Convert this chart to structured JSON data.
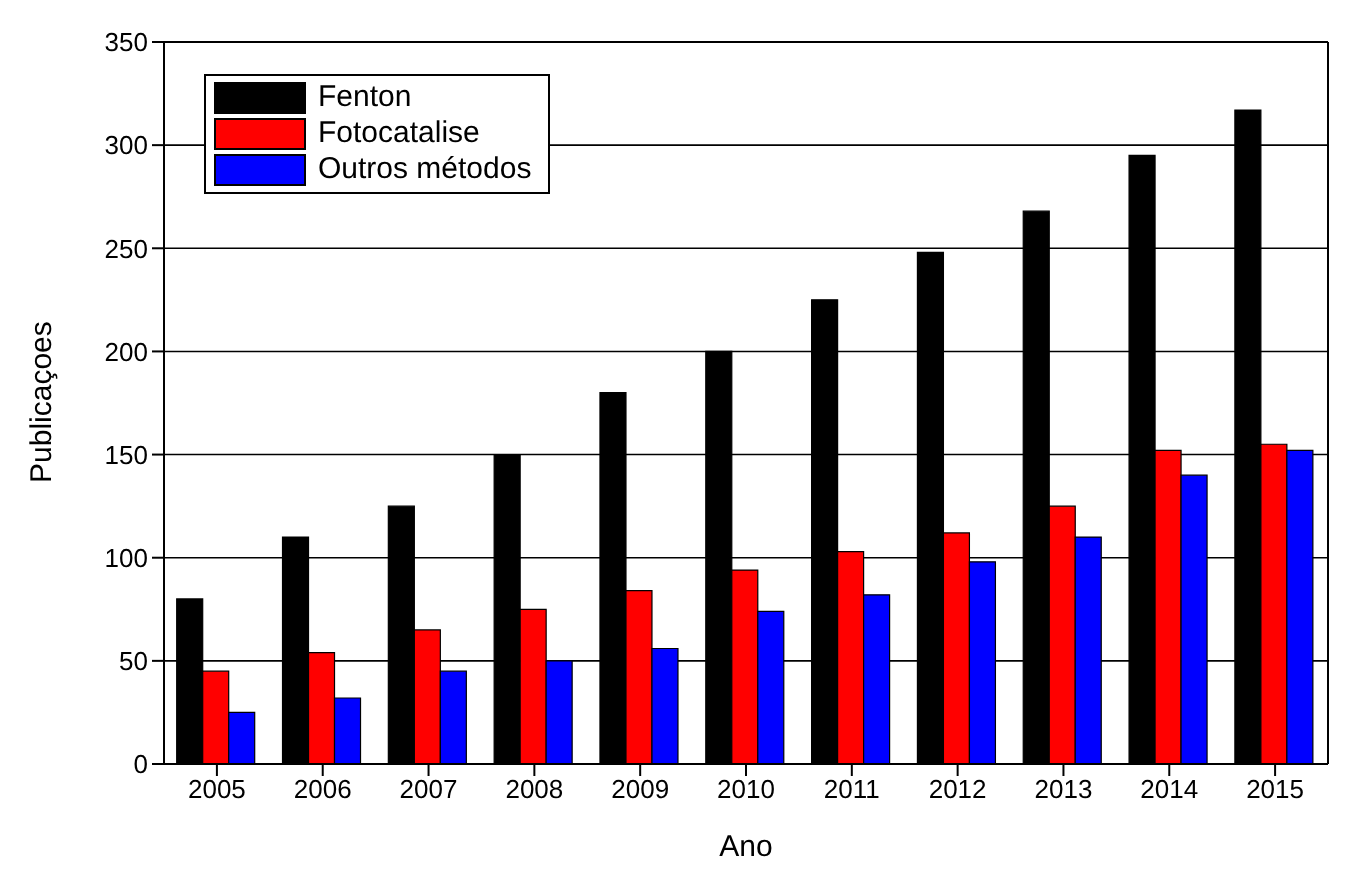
{
  "chart_data": {
    "type": "bar",
    "xlabel": "Ano",
    "ylabel": "Publicaçoes",
    "categories": [
      "2005",
      "2006",
      "2007",
      "2008",
      "2009",
      "2010",
      "2011",
      "2012",
      "2013",
      "2014",
      "2015"
    ],
    "series": [
      {
        "name": "Fenton",
        "color": "#000000",
        "values": [
          80,
          110,
          125,
          150,
          180,
          200,
          225,
          248,
          268,
          295,
          317
        ]
      },
      {
        "name": "Fotocatalise",
        "color": "#ff0000",
        "values": [
          45,
          54,
          65,
          75,
          84,
          94,
          103,
          112,
          125,
          152,
          155
        ]
      },
      {
        "name": "Outros métodos",
        "color": "#0000ff",
        "values": [
          25,
          32,
          45,
          50,
          56,
          74,
          82,
          98,
          110,
          140,
          152
        ]
      }
    ],
    "ylim": [
      0,
      350
    ],
    "yticks": [
      0,
      50,
      100,
      150,
      200,
      250,
      300,
      350
    ],
    "grid": "y",
    "legend": "top left"
  }
}
